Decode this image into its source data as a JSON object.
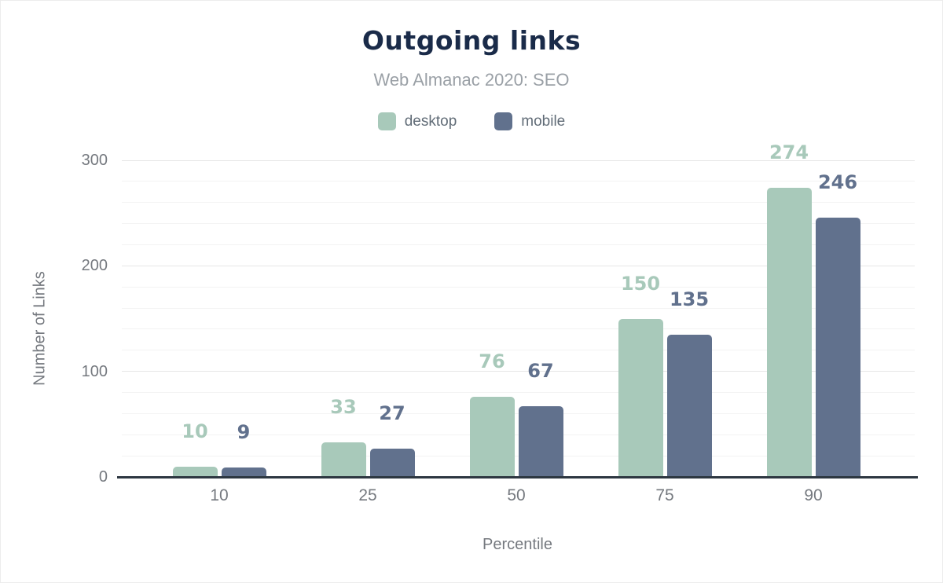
{
  "title": "Outgoing links",
  "subtitle": "Web Almanac 2020: SEO",
  "legend": {
    "items": [
      {
        "label": "desktop",
        "color": "#a8c9ba"
      },
      {
        "label": "mobile",
        "color": "#61718d"
      }
    ]
  },
  "chart_data": {
    "type": "bar",
    "title": "Outgoing links",
    "subtitle": "Web Almanac 2020: SEO",
    "categories": [
      "10",
      "25",
      "50",
      "75",
      "90"
    ],
    "series": [
      {
        "name": "desktop",
        "color": "#a8c9ba",
        "values": [
          10,
          33,
          76,
          150,
          274
        ]
      },
      {
        "name": "mobile",
        "color": "#61718d",
        "values": [
          9,
          27,
          67,
          135,
          246
        ]
      }
    ],
    "xlabel": "Percentile",
    "ylabel": "Number of Links",
    "yticks": [
      0,
      100,
      200,
      300
    ],
    "ylim": [
      0,
      310
    ],
    "minor_grid_step": 20,
    "grid": true,
    "legend_position": "top",
    "data_labels": true
  },
  "colors": {
    "title": "#1a2b49",
    "subtitle": "#9aa0a6",
    "axis": "#75797f",
    "legend_text": "#616c77",
    "grid_major": "#e6e6e6",
    "grid_minor": "#f3f3f3",
    "baseline": "#2d3741",
    "background": "#ffffff"
  }
}
